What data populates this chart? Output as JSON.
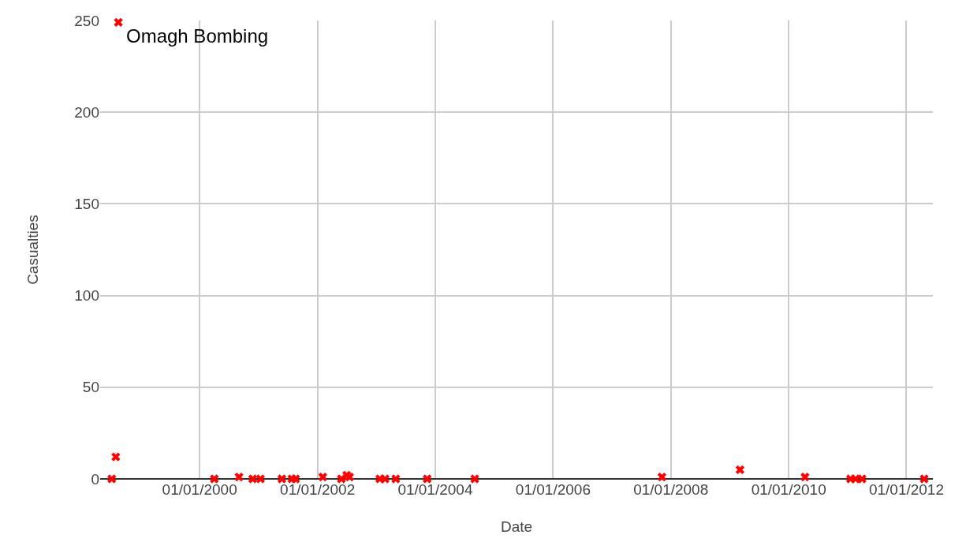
{
  "chart_data": {
    "type": "scatter",
    "xlabel": "Date",
    "ylabel": "Casualties",
    "x": [
      "1998-07-05",
      "1998-07-30",
      "1998-08-15",
      "2000-04-01",
      "2000-09-01",
      "2000-11-25",
      "2001-01-12",
      "2001-05-25",
      "2001-07-26",
      "2001-08-18",
      "2002-02-03",
      "2002-05-29",
      "2002-07-01",
      "2002-07-19",
      "2003-01-22",
      "2003-02-24",
      "2003-05-01",
      "2003-11-12",
      "2004-09-02",
      "2007-11-07",
      "2009-03-05",
      "2010-04-12",
      "2011-01-19",
      "2011-02-20",
      "2011-04-01",
      "2012-04-20"
    ],
    "series": [
      {
        "color": "#ff0000",
        "values": [
          0,
          12,
          249,
          0,
          1,
          0,
          0,
          0,
          0,
          0,
          1,
          0,
          2,
          1,
          0,
          0,
          0,
          0,
          0,
          1,
          5,
          1,
          0,
          0,
          0,
          0
        ]
      }
    ],
    "xlim": [
      "1998-04-24",
      "2012-06-13"
    ],
    "xticks": [
      {
        "value": "2000-01-01",
        "label": "01/01/2000"
      },
      {
        "value": "2002-01-01",
        "label": "01/01/2002"
      },
      {
        "value": "2004-01-01",
        "label": "01/01/2004"
      },
      {
        "value": "2006-01-01",
        "label": "01/01/2006"
      },
      {
        "value": "2008-01-01",
        "label": "01/01/2008"
      },
      {
        "value": "2010-01-01",
        "label": "01/01/2010"
      },
      {
        "value": "2012-01-01",
        "label": "01/01/2012"
      }
    ],
    "ylim": [
      0,
      250
    ],
    "yticks": [
      0,
      50,
      100,
      150,
      200,
      250
    ],
    "grid": true,
    "marker": "cross",
    "annotations": [
      {
        "text": "Omagh Bombing",
        "x": "1998-08-15",
        "y": 249
      }
    ]
  }
}
